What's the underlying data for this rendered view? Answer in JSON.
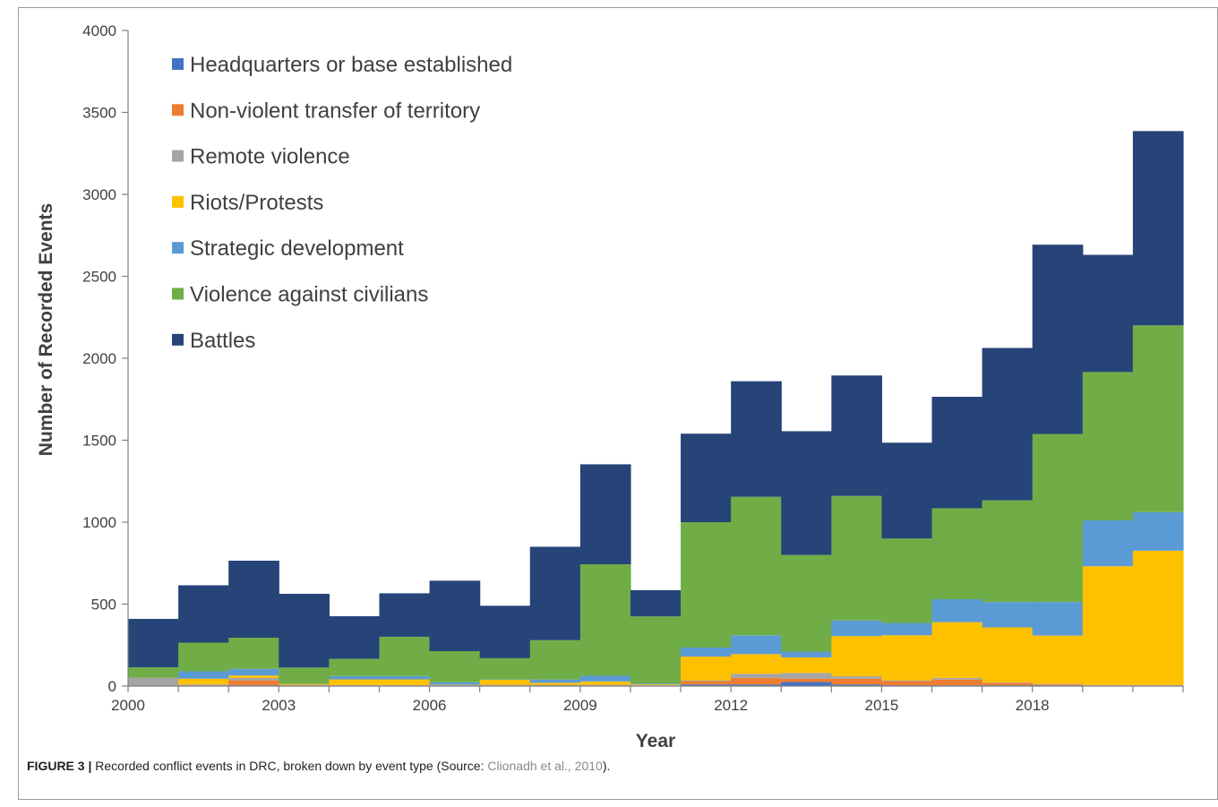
{
  "chart_data": {
    "type": "bar",
    "stacked": true,
    "xlabel": "Year",
    "ylabel": "Number of Recorded Events",
    "ylim": [
      0,
      4000
    ],
    "yticks": [
      "0",
      "500",
      "1000",
      "1500",
      "2000",
      "2500",
      "3000",
      "3500",
      "4000"
    ],
    "ytick_values": [
      0,
      500,
      1000,
      1500,
      2000,
      2500,
      3000,
      3500,
      4000
    ],
    "categories": [
      "2000",
      "2001",
      "2002",
      "2003",
      "2004",
      "2005",
      "2006",
      "2007",
      "2008",
      "2009",
      "2010",
      "2011",
      "2012",
      "2013",
      "2014",
      "2015",
      "2016",
      "2017",
      "2018",
      "2019",
      "2020"
    ],
    "xtick_labels": [
      "2000",
      "2003",
      "2006",
      "2009",
      "2012",
      "2015",
      "2018"
    ],
    "xtick_indices": [
      0,
      3,
      6,
      9,
      12,
      15,
      18
    ],
    "legend_position": "top-left",
    "grid": false,
    "series": [
      {
        "name": "Headquarters or base established",
        "color": "#4472c4",
        "values": [
          0,
          0,
          5,
          0,
          0,
          0,
          0,
          0,
          0,
          0,
          0,
          10,
          10,
          25,
          10,
          5,
          5,
          5,
          5,
          2,
          2
        ]
      },
      {
        "name": "Non-violent transfer of territory",
        "color": "#ed7d31",
        "values": [
          2,
          5,
          30,
          5,
          3,
          3,
          3,
          5,
          5,
          5,
          3,
          20,
          40,
          20,
          35,
          25,
          35,
          15,
          5,
          2,
          2
        ]
      },
      {
        "name": "Remote violence",
        "color": "#a5a5a5",
        "values": [
          48,
          5,
          15,
          3,
          3,
          3,
          3,
          3,
          3,
          3,
          2,
          5,
          25,
          35,
          15,
          5,
          10,
          3,
          3,
          2,
          2
        ]
      },
      {
        "name": "Riots/Protests",
        "color": "#ffc000",
        "values": [
          0,
          35,
          15,
          5,
          35,
          35,
          2,
          30,
          12,
          20,
          5,
          145,
          120,
          95,
          245,
          275,
          340,
          335,
          295,
          725,
          820
        ]
      },
      {
        "name": "Strategic development",
        "color": "#5b9bd5",
        "values": [
          0,
          45,
          40,
          0,
          20,
          20,
          15,
          2,
          20,
          35,
          5,
          55,
          115,
          35,
          95,
          75,
          140,
          155,
          205,
          280,
          235
        ]
      },
      {
        "name": "Violence against civilians",
        "color": "#70ad47",
        "values": [
          65,
          175,
          190,
          100,
          105,
          240,
          190,
          130,
          240,
          680,
          410,
          765,
          845,
          590,
          760,
          515,
          555,
          620,
          1025,
          905,
          1140
        ]
      },
      {
        "name": "Battles",
        "color": "#264478",
        "values": [
          295,
          350,
          470,
          450,
          260,
          265,
          430,
          320,
          570,
          610,
          160,
          540,
          705,
          755,
          735,
          585,
          680,
          930,
          1155,
          715,
          1185
        ]
      }
    ]
  },
  "caption": {
    "label": "FIGURE 3 |",
    "text": " Recorded conflict events in DRC, broken down by event type (Source: ",
    "source": "Clionadh et al., 2010",
    "end": ")."
  }
}
